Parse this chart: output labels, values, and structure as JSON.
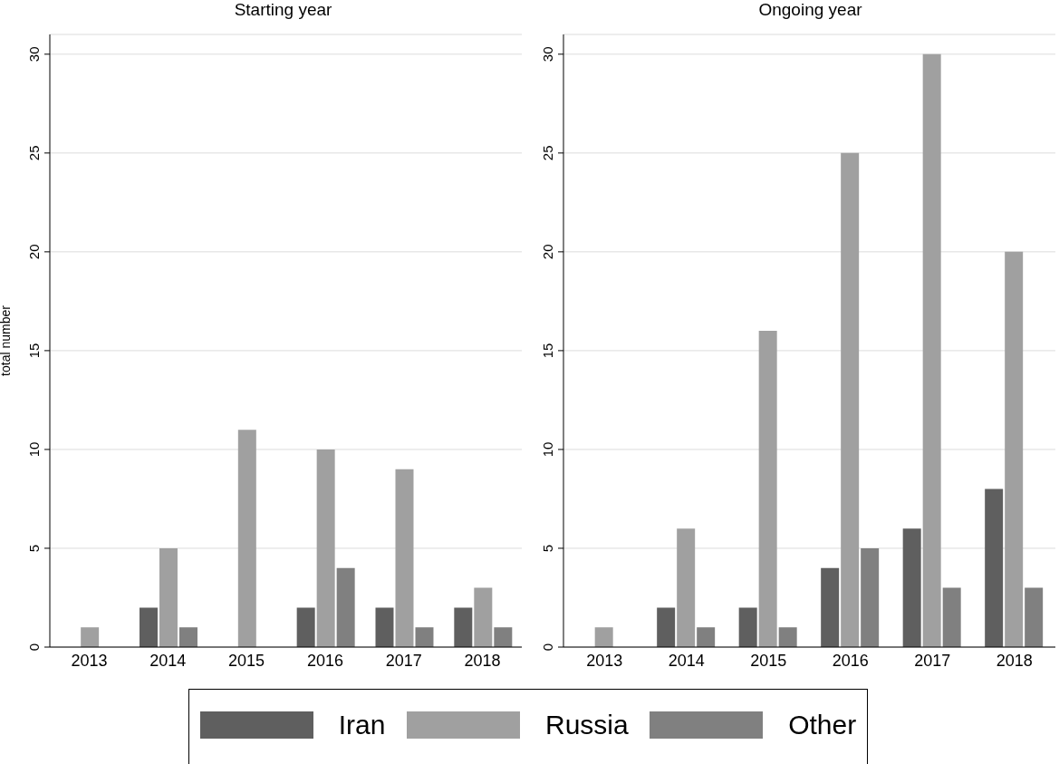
{
  "chart_data": [
    {
      "type": "bar",
      "title": "Starting year",
      "ylabel": "total number",
      "categories": [
        "2013",
        "2014",
        "2015",
        "2016",
        "2017",
        "2018"
      ],
      "series": [
        {
          "name": "Iran",
          "color": "#5f5f5f",
          "values": [
            0,
            2,
            0,
            2,
            2,
            2
          ]
        },
        {
          "name": "Russia",
          "color": "#a0a0a0",
          "values": [
            1,
            5,
            11,
            10,
            9,
            3
          ]
        },
        {
          "name": "Other",
          "color": "#808080",
          "values": [
            0,
            1,
            0,
            4,
            1,
            1
          ]
        }
      ],
      "ylim": [
        0,
        31
      ],
      "yticks": [
        0,
        5,
        10,
        15,
        20,
        25,
        30
      ],
      "grid": "y",
      "legend": "bottom"
    },
    {
      "type": "bar",
      "title": "Ongoing year",
      "categories": [
        "2013",
        "2014",
        "2015",
        "2016",
        "2017",
        "2018"
      ],
      "series": [
        {
          "color": "#5f5f5f",
          "values": [
            0,
            2,
            2,
            4,
            6,
            8
          ]
        },
        {
          "color": "#a0a0a0",
          "values": [
            1,
            6,
            16,
            25,
            30,
            20
          ]
        },
        {
          "color": "#808080",
          "values": [
            0,
            1,
            1,
            5,
            3,
            3
          ]
        }
      ],
      "ylim": [
        0,
        31
      ],
      "yticks": [
        0,
        5,
        10,
        15,
        20,
        25,
        30
      ],
      "grid": "y"
    }
  ]
}
